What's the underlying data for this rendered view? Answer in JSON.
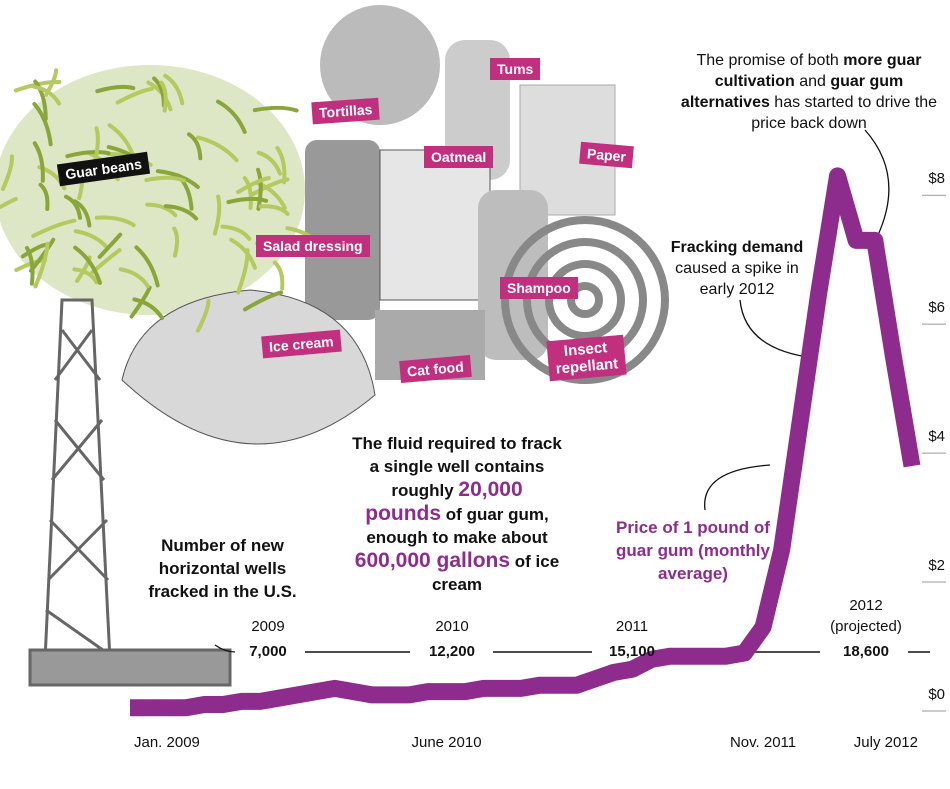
{
  "chart_data": {
    "type": "line",
    "categories": [
      "Jan. 2009",
      null,
      null,
      null,
      null,
      null,
      null,
      null,
      null,
      null,
      null,
      null,
      null,
      null,
      null,
      null,
      null,
      "June 2010",
      null,
      null,
      null,
      null,
      null,
      null,
      null,
      null,
      null,
      null,
      null,
      null,
      null,
      null,
      null,
      null,
      "Nov. 2011",
      null,
      null,
      null,
      null,
      null,
      null,
      null,
      "July 2012"
    ],
    "series": [
      {
        "name": "Price of 1 pound of guar gum (monthly average)",
        "color": "#8e2c8e",
        "values": [
          0.05,
          0.05,
          0.05,
          0.05,
          0.1,
          0.1,
          0.15,
          0.15,
          0.2,
          0.25,
          0.3,
          0.35,
          0.3,
          0.25,
          0.25,
          0.25,
          0.3,
          0.3,
          0.3,
          0.35,
          0.35,
          0.35,
          0.4,
          0.4,
          0.4,
          0.5,
          0.6,
          0.65,
          0.8,
          0.85,
          0.85,
          0.85,
          0.85,
          0.9,
          1.3,
          2.5,
          4.5,
          6.5,
          8.3,
          7.3,
          7.3,
          5.5,
          3.8
        ]
      }
    ],
    "ylim": [
      0,
      8.5
    ],
    "yticks": [
      {
        "value": 0,
        "label": "$0"
      },
      {
        "value": 2,
        "label": "$2"
      },
      {
        "value": 4,
        "label": "$4"
      },
      {
        "value": 6,
        "label": "$6"
      },
      {
        "value": 8,
        "label": "$8"
      }
    ],
    "grid": false,
    "annotations": {
      "promise": [
        "The promise of both ",
        "more guar cultivation",
        " and ",
        "guar gum alternatives",
        " has started to drive the price back down"
      ],
      "spike": [
        "Fracking demand",
        " caused a spike in early 2012"
      ]
    }
  },
  "products": [
    "Guar beans",
    "Tortillas",
    "Tums",
    "Oatmeal",
    "Paper",
    "Salad dressing",
    "Shampoo",
    "Ice cream",
    "Cat food",
    "Insect",
    "repellant"
  ],
  "fluid_text": [
    "The fluid required to frack a single well contains roughly ",
    "20,000 pounds",
    " of guar gum, enough to make about ",
    "600,000 gallons",
    " of ice cream"
  ],
  "wells": {
    "title": "Number of new horizontal wells fracked in the U.S.",
    "items": [
      {
        "year": "2009",
        "count": "7,000"
      },
      {
        "year": "2010",
        "count": "12,200"
      },
      {
        "year": "2011",
        "count": "15,100"
      },
      {
        "year": "2012",
        "note": "(projected)",
        "count": "18,600"
      }
    ]
  }
}
